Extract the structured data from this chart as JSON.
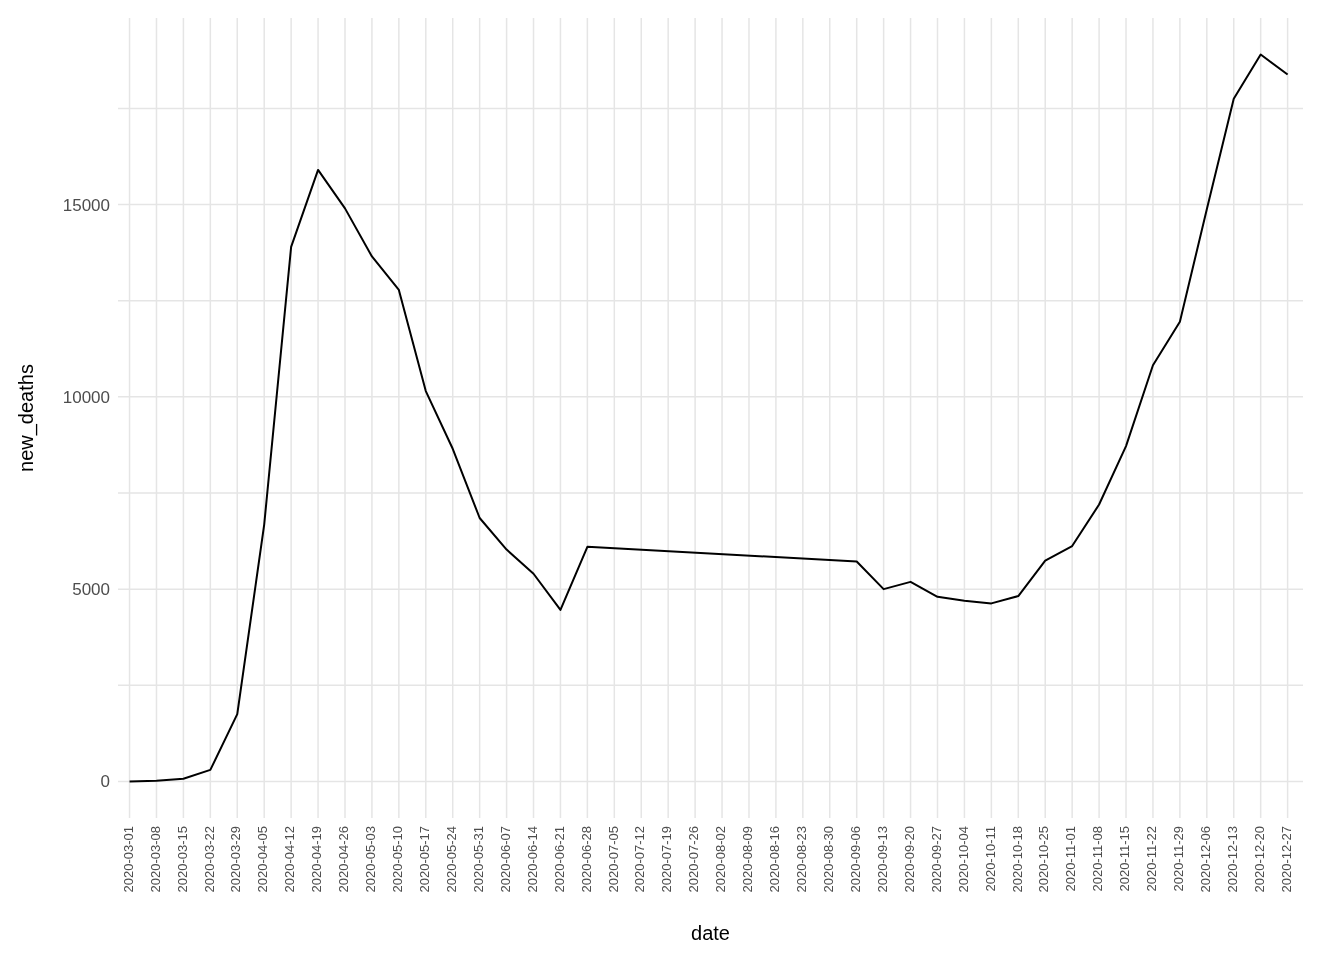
{
  "chart_data": {
    "type": "line",
    "xlabel": "date",
    "ylabel": "new_deaths",
    "x": [
      "2020-03-01",
      "2020-03-08",
      "2020-03-15",
      "2020-03-22",
      "2020-03-29",
      "2020-04-05",
      "2020-04-12",
      "2020-04-19",
      "2020-04-26",
      "2020-05-03",
      "2020-05-10",
      "2020-05-17",
      "2020-05-24",
      "2020-05-31",
      "2020-06-07",
      "2020-06-14",
      "2020-06-21",
      "2020-06-28",
      "2020-09-06",
      "2020-09-13",
      "2020-09-20",
      "2020-09-27",
      "2020-10-04",
      "2020-10-11",
      "2020-10-18",
      "2020-10-25",
      "2020-11-01",
      "2020-11-08",
      "2020-11-15",
      "2020-11-22",
      "2020-11-29",
      "2020-12-06",
      "2020-12-13",
      "2020-12-20",
      "2020-12-27"
    ],
    "series": [
      {
        "color": "#000000",
        "values": [
          0,
          20,
          70,
          300,
          1750,
          6680,
          13900,
          15900,
          14900,
          13650,
          12780,
          10150,
          8650,
          6850,
          6030,
          5400,
          4460,
          6100,
          5720,
          5000,
          5190,
          4800,
          4700,
          4630,
          4820,
          5740,
          6120,
          7200,
          8720,
          10820,
          11950,
          14880,
          17750,
          18900,
          18380
        ]
      }
    ],
    "xlim": [
      "2020-02-27",
      "2020-12-31"
    ],
    "xticks": [
      "2020-03-01",
      "2020-03-08",
      "2020-03-15",
      "2020-03-22",
      "2020-03-29",
      "2020-04-05",
      "2020-04-12",
      "2020-04-19",
      "2020-04-26",
      "2020-05-03",
      "2020-05-10",
      "2020-05-17",
      "2020-05-24",
      "2020-05-31",
      "2020-06-07",
      "2020-06-14",
      "2020-06-21",
      "2020-06-28",
      "2020-07-05",
      "2020-07-12",
      "2020-07-19",
      "2020-07-26",
      "2020-08-02",
      "2020-08-09",
      "2020-08-16",
      "2020-08-23",
      "2020-08-30",
      "2020-09-06",
      "2020-09-13",
      "2020-09-20",
      "2020-09-27",
      "2020-10-04",
      "2020-10-11",
      "2020-10-18",
      "2020-10-25",
      "2020-11-01",
      "2020-11-08",
      "2020-11-15",
      "2020-11-22",
      "2020-11-29",
      "2020-12-06",
      "2020-12-13",
      "2020-12-20",
      "2020-12-27"
    ],
    "ylim": [
      -950,
      19850
    ],
    "yticks": [
      0,
      {
        "value": 2500,
        "label": null
      },
      5000,
      {
        "value": 7500,
        "label": null
      },
      10000,
      {
        "value": 12500,
        "label": null
      },
      15000,
      {
        "value": 17500,
        "label": null
      }
    ],
    "grid": true,
    "legend": false
  }
}
